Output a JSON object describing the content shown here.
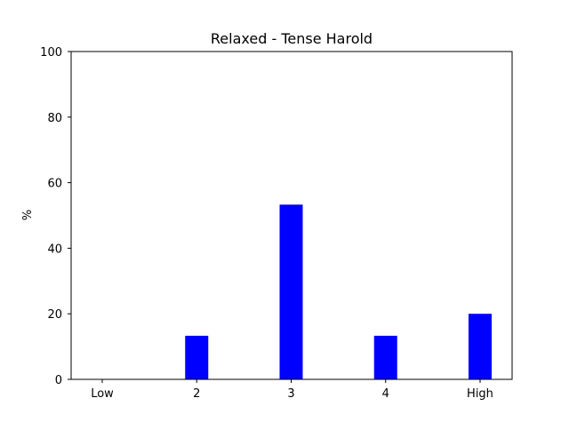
{
  "chart_data": {
    "type": "bar",
    "title": "Relaxed - Tense Harold",
    "xlabel": "",
    "ylabel": "%",
    "categories": [
      "Low",
      "2",
      "3",
      "4",
      "High"
    ],
    "values": [
      0,
      13.3,
      53.3,
      13.3,
      20.0
    ],
    "ylim": [
      0,
      100
    ],
    "yticks": [
      0,
      20,
      40,
      60,
      80,
      100
    ],
    "bar_color": "#0000ff",
    "grid": false,
    "legend": "none"
  }
}
